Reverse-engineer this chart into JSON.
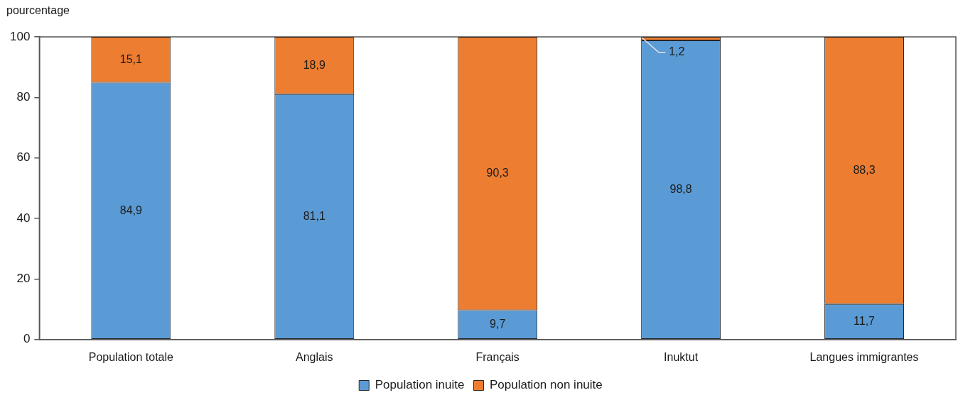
{
  "chart_data": {
    "type": "bar",
    "stacked": true,
    "ylabel": "pourcentage",
    "categories": [
      "Population totale",
      "Anglais",
      "Français",
      "Inuktut",
      "Langues immigrantes"
    ],
    "series": [
      {
        "name": "Population inuite",
        "color": "#5b9bd5",
        "values": [
          84.9,
          81.1,
          9.7,
          98.8,
          11.7
        ],
        "value_labels": [
          "84,9",
          "81,1",
          "9,7",
          "98,8",
          "11,7"
        ]
      },
      {
        "name": "Population non inuite",
        "color": "#ed7d31",
        "values": [
          15.1,
          18.9,
          90.3,
          1.2,
          88.3
        ],
        "value_labels": [
          "15,1",
          "18,9",
          "90,3",
          "1,2",
          "88,3"
        ]
      }
    ],
    "ylim": [
      0,
      100
    ],
    "yticks": [
      0,
      20,
      40,
      60,
      80,
      100
    ],
    "grid": false,
    "legend": "bottom"
  }
}
